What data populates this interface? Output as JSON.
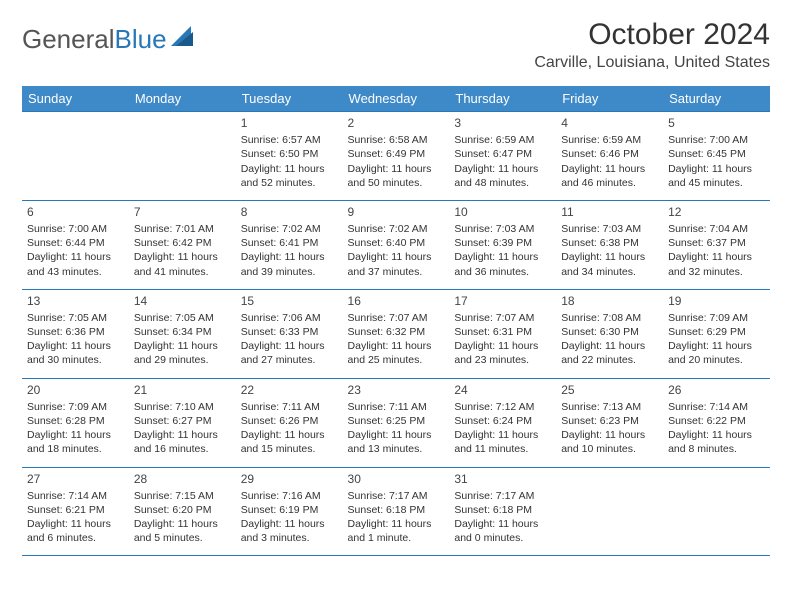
{
  "brand": {
    "part1": "General",
    "part2": "Blue"
  },
  "title": "October 2024",
  "location": "Carville, Louisiana, United States",
  "colors": {
    "header_bg": "#3e8ac8",
    "header_text": "#ffffff",
    "border": "#2878b8",
    "brand_gray": "#555555",
    "brand_blue": "#2878b8",
    "text": "#333333",
    "background": "#ffffff"
  },
  "weekdays": [
    "Sunday",
    "Monday",
    "Tuesday",
    "Wednesday",
    "Thursday",
    "Friday",
    "Saturday"
  ],
  "weeks": [
    [
      null,
      null,
      {
        "n": "1",
        "sr": "6:57 AM",
        "ss": "6:50 PM",
        "dl": "11 hours and 52 minutes."
      },
      {
        "n": "2",
        "sr": "6:58 AM",
        "ss": "6:49 PM",
        "dl": "11 hours and 50 minutes."
      },
      {
        "n": "3",
        "sr": "6:59 AM",
        "ss": "6:47 PM",
        "dl": "11 hours and 48 minutes."
      },
      {
        "n": "4",
        "sr": "6:59 AM",
        "ss": "6:46 PM",
        "dl": "11 hours and 46 minutes."
      },
      {
        "n": "5",
        "sr": "7:00 AM",
        "ss": "6:45 PM",
        "dl": "11 hours and 45 minutes."
      }
    ],
    [
      {
        "n": "6",
        "sr": "7:00 AM",
        "ss": "6:44 PM",
        "dl": "11 hours and 43 minutes."
      },
      {
        "n": "7",
        "sr": "7:01 AM",
        "ss": "6:42 PM",
        "dl": "11 hours and 41 minutes."
      },
      {
        "n": "8",
        "sr": "7:02 AM",
        "ss": "6:41 PM",
        "dl": "11 hours and 39 minutes."
      },
      {
        "n": "9",
        "sr": "7:02 AM",
        "ss": "6:40 PM",
        "dl": "11 hours and 37 minutes."
      },
      {
        "n": "10",
        "sr": "7:03 AM",
        "ss": "6:39 PM",
        "dl": "11 hours and 36 minutes."
      },
      {
        "n": "11",
        "sr": "7:03 AM",
        "ss": "6:38 PM",
        "dl": "11 hours and 34 minutes."
      },
      {
        "n": "12",
        "sr": "7:04 AM",
        "ss": "6:37 PM",
        "dl": "11 hours and 32 minutes."
      }
    ],
    [
      {
        "n": "13",
        "sr": "7:05 AM",
        "ss": "6:36 PM",
        "dl": "11 hours and 30 minutes."
      },
      {
        "n": "14",
        "sr": "7:05 AM",
        "ss": "6:34 PM",
        "dl": "11 hours and 29 minutes."
      },
      {
        "n": "15",
        "sr": "7:06 AM",
        "ss": "6:33 PM",
        "dl": "11 hours and 27 minutes."
      },
      {
        "n": "16",
        "sr": "7:07 AM",
        "ss": "6:32 PM",
        "dl": "11 hours and 25 minutes."
      },
      {
        "n": "17",
        "sr": "7:07 AM",
        "ss": "6:31 PM",
        "dl": "11 hours and 23 minutes."
      },
      {
        "n": "18",
        "sr": "7:08 AM",
        "ss": "6:30 PM",
        "dl": "11 hours and 22 minutes."
      },
      {
        "n": "19",
        "sr": "7:09 AM",
        "ss": "6:29 PM",
        "dl": "11 hours and 20 minutes."
      }
    ],
    [
      {
        "n": "20",
        "sr": "7:09 AM",
        "ss": "6:28 PM",
        "dl": "11 hours and 18 minutes."
      },
      {
        "n": "21",
        "sr": "7:10 AM",
        "ss": "6:27 PM",
        "dl": "11 hours and 16 minutes."
      },
      {
        "n": "22",
        "sr": "7:11 AM",
        "ss": "6:26 PM",
        "dl": "11 hours and 15 minutes."
      },
      {
        "n": "23",
        "sr": "7:11 AM",
        "ss": "6:25 PM",
        "dl": "11 hours and 13 minutes."
      },
      {
        "n": "24",
        "sr": "7:12 AM",
        "ss": "6:24 PM",
        "dl": "11 hours and 11 minutes."
      },
      {
        "n": "25",
        "sr": "7:13 AM",
        "ss": "6:23 PM",
        "dl": "11 hours and 10 minutes."
      },
      {
        "n": "26",
        "sr": "7:14 AM",
        "ss": "6:22 PM",
        "dl": "11 hours and 8 minutes."
      }
    ],
    [
      {
        "n": "27",
        "sr": "7:14 AM",
        "ss": "6:21 PM",
        "dl": "11 hours and 6 minutes."
      },
      {
        "n": "28",
        "sr": "7:15 AM",
        "ss": "6:20 PM",
        "dl": "11 hours and 5 minutes."
      },
      {
        "n": "29",
        "sr": "7:16 AM",
        "ss": "6:19 PM",
        "dl": "11 hours and 3 minutes."
      },
      {
        "n": "30",
        "sr": "7:17 AM",
        "ss": "6:18 PM",
        "dl": "11 hours and 1 minute."
      },
      {
        "n": "31",
        "sr": "7:17 AM",
        "ss": "6:18 PM",
        "dl": "11 hours and 0 minutes."
      },
      null,
      null
    ]
  ],
  "labels": {
    "sunrise": "Sunrise: ",
    "sunset": "Sunset: ",
    "daylight": "Daylight: "
  }
}
